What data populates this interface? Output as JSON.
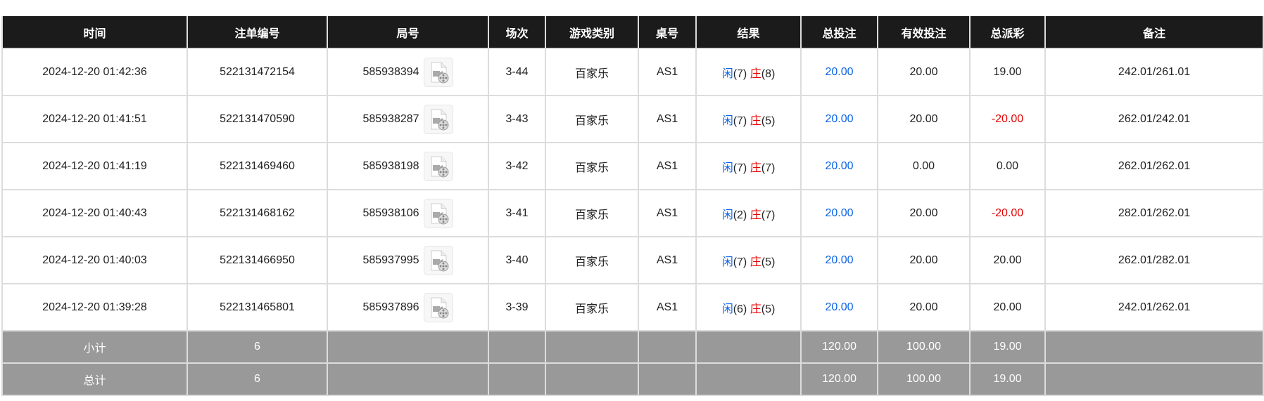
{
  "headers": [
    "时间",
    "注单编号",
    "局号",
    "场次",
    "游戏类别",
    "桌号",
    "结果",
    "总投注",
    "有效投注",
    "总派彩",
    "备注"
  ],
  "colors": {
    "player": "#0a64e6",
    "banker": "#e60000",
    "bet": "#0a64e6",
    "negative": "#e60000"
  },
  "rows": [
    {
      "time": "2024-12-20 01:42:36",
      "bet_id": "522131472154",
      "round": "585938394",
      "game_no": "3-44",
      "game": "百家乐",
      "table": "AS1",
      "p": "闲",
      "pv": "(7)",
      "b": "庄",
      "bv": "(8)",
      "total": "20.00",
      "valid": "20.00",
      "payout": "19.00",
      "neg": false,
      "note": "242.01/261.01"
    },
    {
      "time": "2024-12-20 01:41:51",
      "bet_id": "522131470590",
      "round": "585938287",
      "game_no": "3-43",
      "game": "百家乐",
      "table": "AS1",
      "p": "闲",
      "pv": "(7)",
      "b": "庄",
      "bv": "(5)",
      "total": "20.00",
      "valid": "20.00",
      "payout": "-20.00",
      "neg": true,
      "note": "262.01/242.01"
    },
    {
      "time": "2024-12-20 01:41:19",
      "bet_id": "522131469460",
      "round": "585938198",
      "game_no": "3-42",
      "game": "百家乐",
      "table": "AS1",
      "p": "闲",
      "pv": "(7)",
      "b": "庄",
      "bv": "(7)",
      "total": "20.00",
      "valid": "0.00",
      "payout": "0.00",
      "neg": false,
      "note": "262.01/262.01"
    },
    {
      "time": "2024-12-20 01:40:43",
      "bet_id": "522131468162",
      "round": "585938106",
      "game_no": "3-41",
      "game": "百家乐",
      "table": "AS1",
      "p": "闲",
      "pv": "(2)",
      "b": "庄",
      "bv": "(7)",
      "total": "20.00",
      "valid": "20.00",
      "payout": "-20.00",
      "neg": true,
      "note": "282.01/262.01"
    },
    {
      "time": "2024-12-20 01:40:03",
      "bet_id": "522131466950",
      "round": "585937995",
      "game_no": "3-40",
      "game": "百家乐",
      "table": "AS1",
      "p": "闲",
      "pv": "(7)",
      "b": "庄",
      "bv": "(5)",
      "total": "20.00",
      "valid": "20.00",
      "payout": "20.00",
      "neg": false,
      "note": "262.01/282.01"
    },
    {
      "time": "2024-12-20 01:39:28",
      "bet_id": "522131465801",
      "round": "585937896",
      "game_no": "3-39",
      "game": "百家乐",
      "table": "AS1",
      "p": "闲",
      "pv": "(6)",
      "b": "庄",
      "bv": "(5)",
      "total": "20.00",
      "valid": "20.00",
      "payout": "20.00",
      "neg": false,
      "note": "242.01/262.01"
    }
  ],
  "summary": [
    {
      "label": "小计",
      "count": "6",
      "total": "120.00",
      "valid": "100.00",
      "payout": "19.00"
    },
    {
      "label": "总计",
      "count": "6",
      "total": "120.00",
      "valid": "100.00",
      "payout": "19.00"
    }
  ],
  "icon": "video-file-icon"
}
